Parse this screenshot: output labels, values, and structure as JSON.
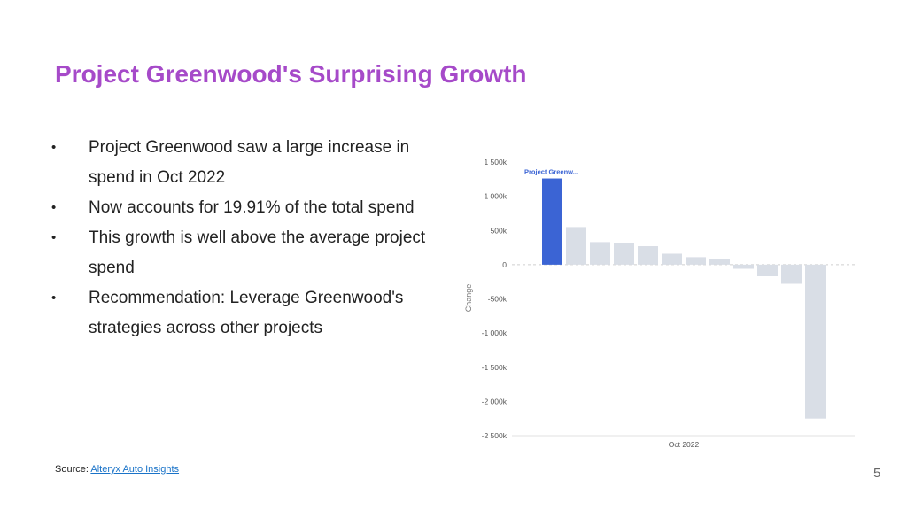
{
  "slide": {
    "title": "Project Greenwood's Surprising Growth",
    "bullets": [
      "Project Greenwood saw a large increase in spend in Oct 2022",
      "Now accounts for 19.91% of the total spend",
      "This growth is well above the average project spend",
      "Recommendation: Leverage Greenwood's strategies across other projects"
    ],
    "bullet_marker": "•",
    "source_prefix": "Source:",
    "source_link": "Alteryx Auto Insights",
    "page_number": "5"
  },
  "colors": {
    "title": "#a64ac9",
    "highlight_bar": "#3b64d4",
    "other_bars": "#d9dee6",
    "link": "#1a73c8"
  },
  "chart_data": {
    "type": "bar",
    "title": "",
    "xlabel": "Oct 2022",
    "ylabel": "Change",
    "ylim": [
      -2500,
      1500
    ],
    "yticks": [
      1500,
      1000,
      500,
      0,
      -500,
      -1000,
      -1500,
      -2000,
      -2500
    ],
    "ytick_labels": [
      "1 500k",
      "1 000k",
      "500k",
      "0",
      "-500k",
      "-1 000k",
      "-1 500k",
      "-2 000k",
      "-2 500k"
    ],
    "values": [
      1260,
      550,
      330,
      320,
      270,
      160,
      110,
      80,
      -60,
      -170,
      -280,
      -2250
    ],
    "highlight_index": 0,
    "highlight_label": "Project Greenw...",
    "zero_line": "dashed",
    "grid": false
  }
}
